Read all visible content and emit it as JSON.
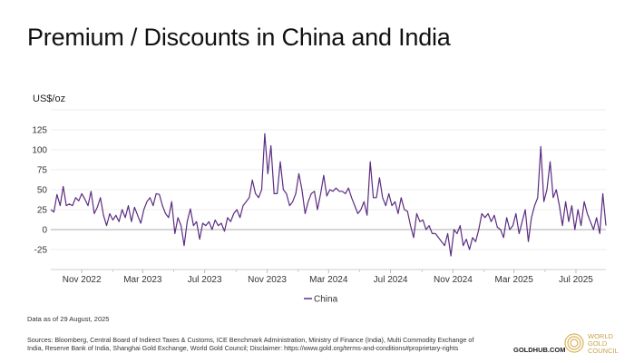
{
  "title": "Premium / Discounts in China and India",
  "footer": {
    "as_of": "Data as of 29 August, 2025",
    "sources": "Sources: Bloomberg, Central Board of Indirect Taxes & Customs, ICE Benchmark Administration, Ministry of Finance (India), Multi Commodity Exchange of India, Reserve Bank of India, Shanghai Gold Exchange, World Gold Council; Disclaimer: https://www.gold.org/terms-and-conditions#proprietary-rights",
    "site": "GOLDHUB.COM",
    "logo_text": [
      "WORLD",
      "GOLD",
      "COUNCIL"
    ]
  },
  "chart_data": {
    "type": "line",
    "title": "Premium / Discounts in China and India",
    "ylabel": "US$/oz",
    "xlabel": "",
    "ylim": [
      -50,
      150
    ],
    "yticks": [
      -25,
      0,
      25,
      50,
      75,
      100,
      125
    ],
    "gridlines": [
      -25,
      25,
      50,
      75,
      100,
      125,
      150
    ],
    "x_start": "2022-09-01",
    "x_end": "2025-08-29",
    "xticks": [
      {
        "label": "Nov 2022",
        "date": "2022-11-01"
      },
      {
        "label": "Mar 2023",
        "date": "2023-03-01"
      },
      {
        "label": "Jul 2023",
        "date": "2023-07-01"
      },
      {
        "label": "Nov 2023",
        "date": "2023-11-01"
      },
      {
        "label": "Mar 2024",
        "date": "2024-03-01"
      },
      {
        "label": "Jul 2024",
        "date": "2024-07-01"
      },
      {
        "label": "Nov 2024",
        "date": "2024-11-01"
      },
      {
        "label": "Mar 2025",
        "date": "2025-03-01"
      },
      {
        "label": "Jul 2025",
        "date": "2025-07-01"
      }
    ],
    "minor_ticks": [
      "2023-01-01",
      "2023-05-01",
      "2023-09-01",
      "2024-01-01",
      "2024-05-01",
      "2024-09-01",
      "2025-01-01",
      "2025-05-01"
    ],
    "legend": {
      "position": "bottom-center"
    },
    "series": [
      {
        "name": "China",
        "color": "#5b2d82",
        "values": [
          25,
          22,
          44,
          30,
          54,
          30,
          32,
          30,
          40,
          36,
          45,
          38,
          30,
          48,
          20,
          28,
          40,
          18,
          5,
          20,
          12,
          18,
          10,
          25,
          15,
          30,
          10,
          28,
          18,
          8,
          25,
          35,
          40,
          30,
          45,
          44,
          30,
          20,
          15,
          35,
          -5,
          15,
          5,
          -20,
          10,
          26,
          5,
          10,
          -12,
          8,
          5,
          10,
          0,
          12,
          5,
          8,
          -2,
          15,
          10,
          20,
          25,
          15,
          30,
          35,
          40,
          62,
          45,
          40,
          50,
          120,
          70,
          105,
          45,
          45,
          85,
          50,
          45,
          30,
          35,
          45,
          70,
          50,
          20,
          35,
          45,
          48,
          25,
          45,
          68,
          42,
          50,
          48,
          52,
          48,
          48,
          45,
          52,
          40,
          30,
          20,
          25,
          35,
          18,
          85,
          40,
          40,
          65,
          40,
          30,
          45,
          30,
          35,
          20,
          40,
          25,
          23,
          5,
          -10,
          20,
          10,
          12,
          0,
          5,
          -5,
          -5,
          -10,
          -15,
          -20,
          -5,
          -33,
          0,
          -5,
          5,
          -20,
          -12,
          -25,
          -10,
          -15,
          0,
          20,
          15,
          20,
          10,
          18,
          3,
          0,
          -10,
          15,
          0,
          5,
          20,
          -5,
          10,
          25,
          -15,
          15,
          30,
          40,
          104,
          35,
          50,
          85,
          40,
          50,
          30,
          5,
          35,
          10,
          30,
          0,
          25,
          5,
          35,
          20,
          10,
          0,
          15,
          -5,
          45,
          5
        ]
      }
    ]
  }
}
